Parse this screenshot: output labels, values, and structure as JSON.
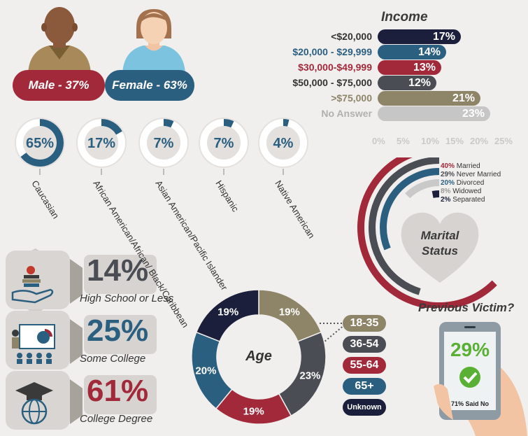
{
  "gender": {
    "male_label": "Male - 37%",
    "female_label": "Female - 63%",
    "male_pct": 37,
    "female_pct": 63
  },
  "ethnicity": [
    {
      "label": "Caucasian",
      "value": 65,
      "text": "65%"
    },
    {
      "label": "African American/African/ Black/Caribbean",
      "value": 17,
      "text": "17%"
    },
    {
      "label": "Asian American/Pacific Islander",
      "value": 7,
      "text": "7%"
    },
    {
      "label": "Hispanic",
      "value": 7,
      "text": "7%"
    },
    {
      "label": "Native American",
      "value": 4,
      "text": "4%"
    }
  ],
  "income": {
    "title": "Income",
    "ticks": [
      "0%",
      "5%",
      "10%",
      "15%",
      "20%",
      "25%"
    ],
    "rows": [
      {
        "label": "<$20,000",
        "value": 17,
        "text": "17%",
        "color": "#1b1f3b"
      },
      {
        "label": "$20,000 - $29,999",
        "value": 14,
        "text": "14%",
        "color": "#2b5f80"
      },
      {
        "label": "$30,000-$49,999",
        "value": 13,
        "text": "13%",
        "color": "#a1293a"
      },
      {
        "label": "$50,000 - $75,000",
        "value": 12,
        "text": "12%",
        "color": "#4a4d54"
      },
      {
        "label": ">$75,000",
        "value": 21,
        "text": "21%",
        "color": "#8e8568"
      },
      {
        "label": "No Answer",
        "value": 23,
        "text": "23%",
        "color": "#c6c6c6"
      }
    ]
  },
  "marital": {
    "title_line1": "Marital",
    "title_line2": "Status",
    "rows": [
      {
        "pct": "40%",
        "label": "Married",
        "value": 40,
        "color": "#a1293a"
      },
      {
        "pct": "29%",
        "label": "Never Married",
        "value": 29,
        "color": "#4a4d54"
      },
      {
        "pct": "20%",
        "label": "Divorced",
        "value": 20,
        "color": "#2b5f80"
      },
      {
        "pct": "8%",
        "label": "Widowed",
        "value": 8,
        "color": "#c9c9c9"
      },
      {
        "pct": "2%",
        "label": "Separated",
        "value": 2,
        "color": "#1b1f3b"
      }
    ]
  },
  "education": [
    {
      "value": "14%",
      "label": "High School or Less",
      "color": "#4a4d54"
    },
    {
      "value": "25%",
      "label": "Some College",
      "color": "#2b5f80"
    },
    {
      "value": "61%",
      "label": "College Degree",
      "color": "#a1293a"
    }
  ],
  "age": {
    "title": "Age",
    "legend": [
      {
        "label": "18-35",
        "color": "#8e8568"
      },
      {
        "label": "36-54",
        "color": "#4a4d54"
      },
      {
        "label": "55-64",
        "color": "#a1293a"
      },
      {
        "label": "65+",
        "color": "#2b5f80"
      },
      {
        "label": "Unknown",
        "color": "#1b1f3b"
      }
    ]
  },
  "victim": {
    "title": "Previous Victim?",
    "pct": "29%",
    "sub": "71% Said No"
  },
  "chart_data": [
    {
      "type": "bar",
      "title": "Income",
      "categories": [
        "<$20,000",
        "$20,000 - $29,999",
        "$30,000-$49,999",
        "$50,000 - $75,000",
        ">$75,000",
        "No Answer"
      ],
      "values": [
        17,
        14,
        13,
        12,
        21,
        23
      ],
      "xlim": [
        0,
        25
      ]
    },
    {
      "type": "pie",
      "title": "Age",
      "categories": [
        "18-35",
        "36-54",
        "55-64",
        "65+",
        "Unknown"
      ],
      "values": [
        19,
        23,
        19,
        20,
        19
      ]
    },
    {
      "type": "bar",
      "categories": [
        "Married",
        "Never Married",
        "Divorced",
        "Widowed",
        "Separated"
      ],
      "values": [
        40,
        29,
        20,
        8,
        2
      ]
    },
    {
      "type": "pie",
      "categories": [
        "Caucasian",
        "African American/African/ Black/Caribbean",
        "Asian American/Pacific Islander",
        "Hispanic",
        "Native American"
      ],
      "values": [
        65,
        17,
        7,
        7,
        4
      ]
    }
  ]
}
